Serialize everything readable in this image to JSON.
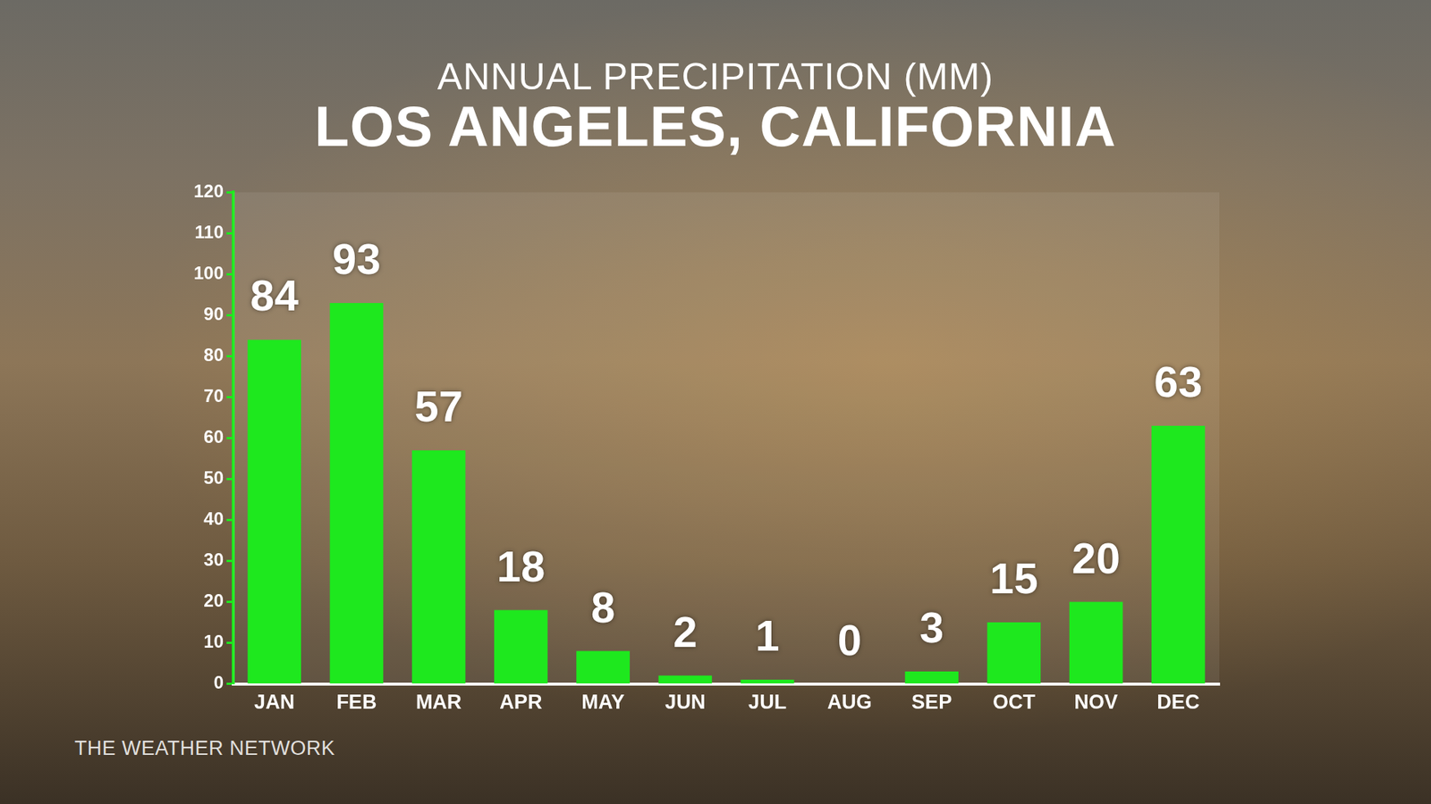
{
  "chart_data": {
    "type": "bar",
    "title": "LOS ANGELES, CALIFORNIA",
    "subtitle": "ANNUAL PRECIPITATION (MM)",
    "categories": [
      "JAN",
      "FEB",
      "MAR",
      "APR",
      "MAY",
      "JUN",
      "JUL",
      "AUG",
      "SEP",
      "OCT",
      "NOV",
      "DEC"
    ],
    "values": [
      84,
      93,
      57,
      18,
      8,
      2,
      1,
      0,
      3,
      15,
      20,
      63
    ],
    "color": "#1ee81e",
    "ylim": [
      0,
      120
    ],
    "yticks": [
      0,
      10,
      20,
      30,
      40,
      50,
      60,
      70,
      80,
      90,
      100,
      110,
      120
    ],
    "grid": false,
    "data_labels": true,
    "annotations": [
      "THE WEATHER NETWORK"
    ]
  }
}
